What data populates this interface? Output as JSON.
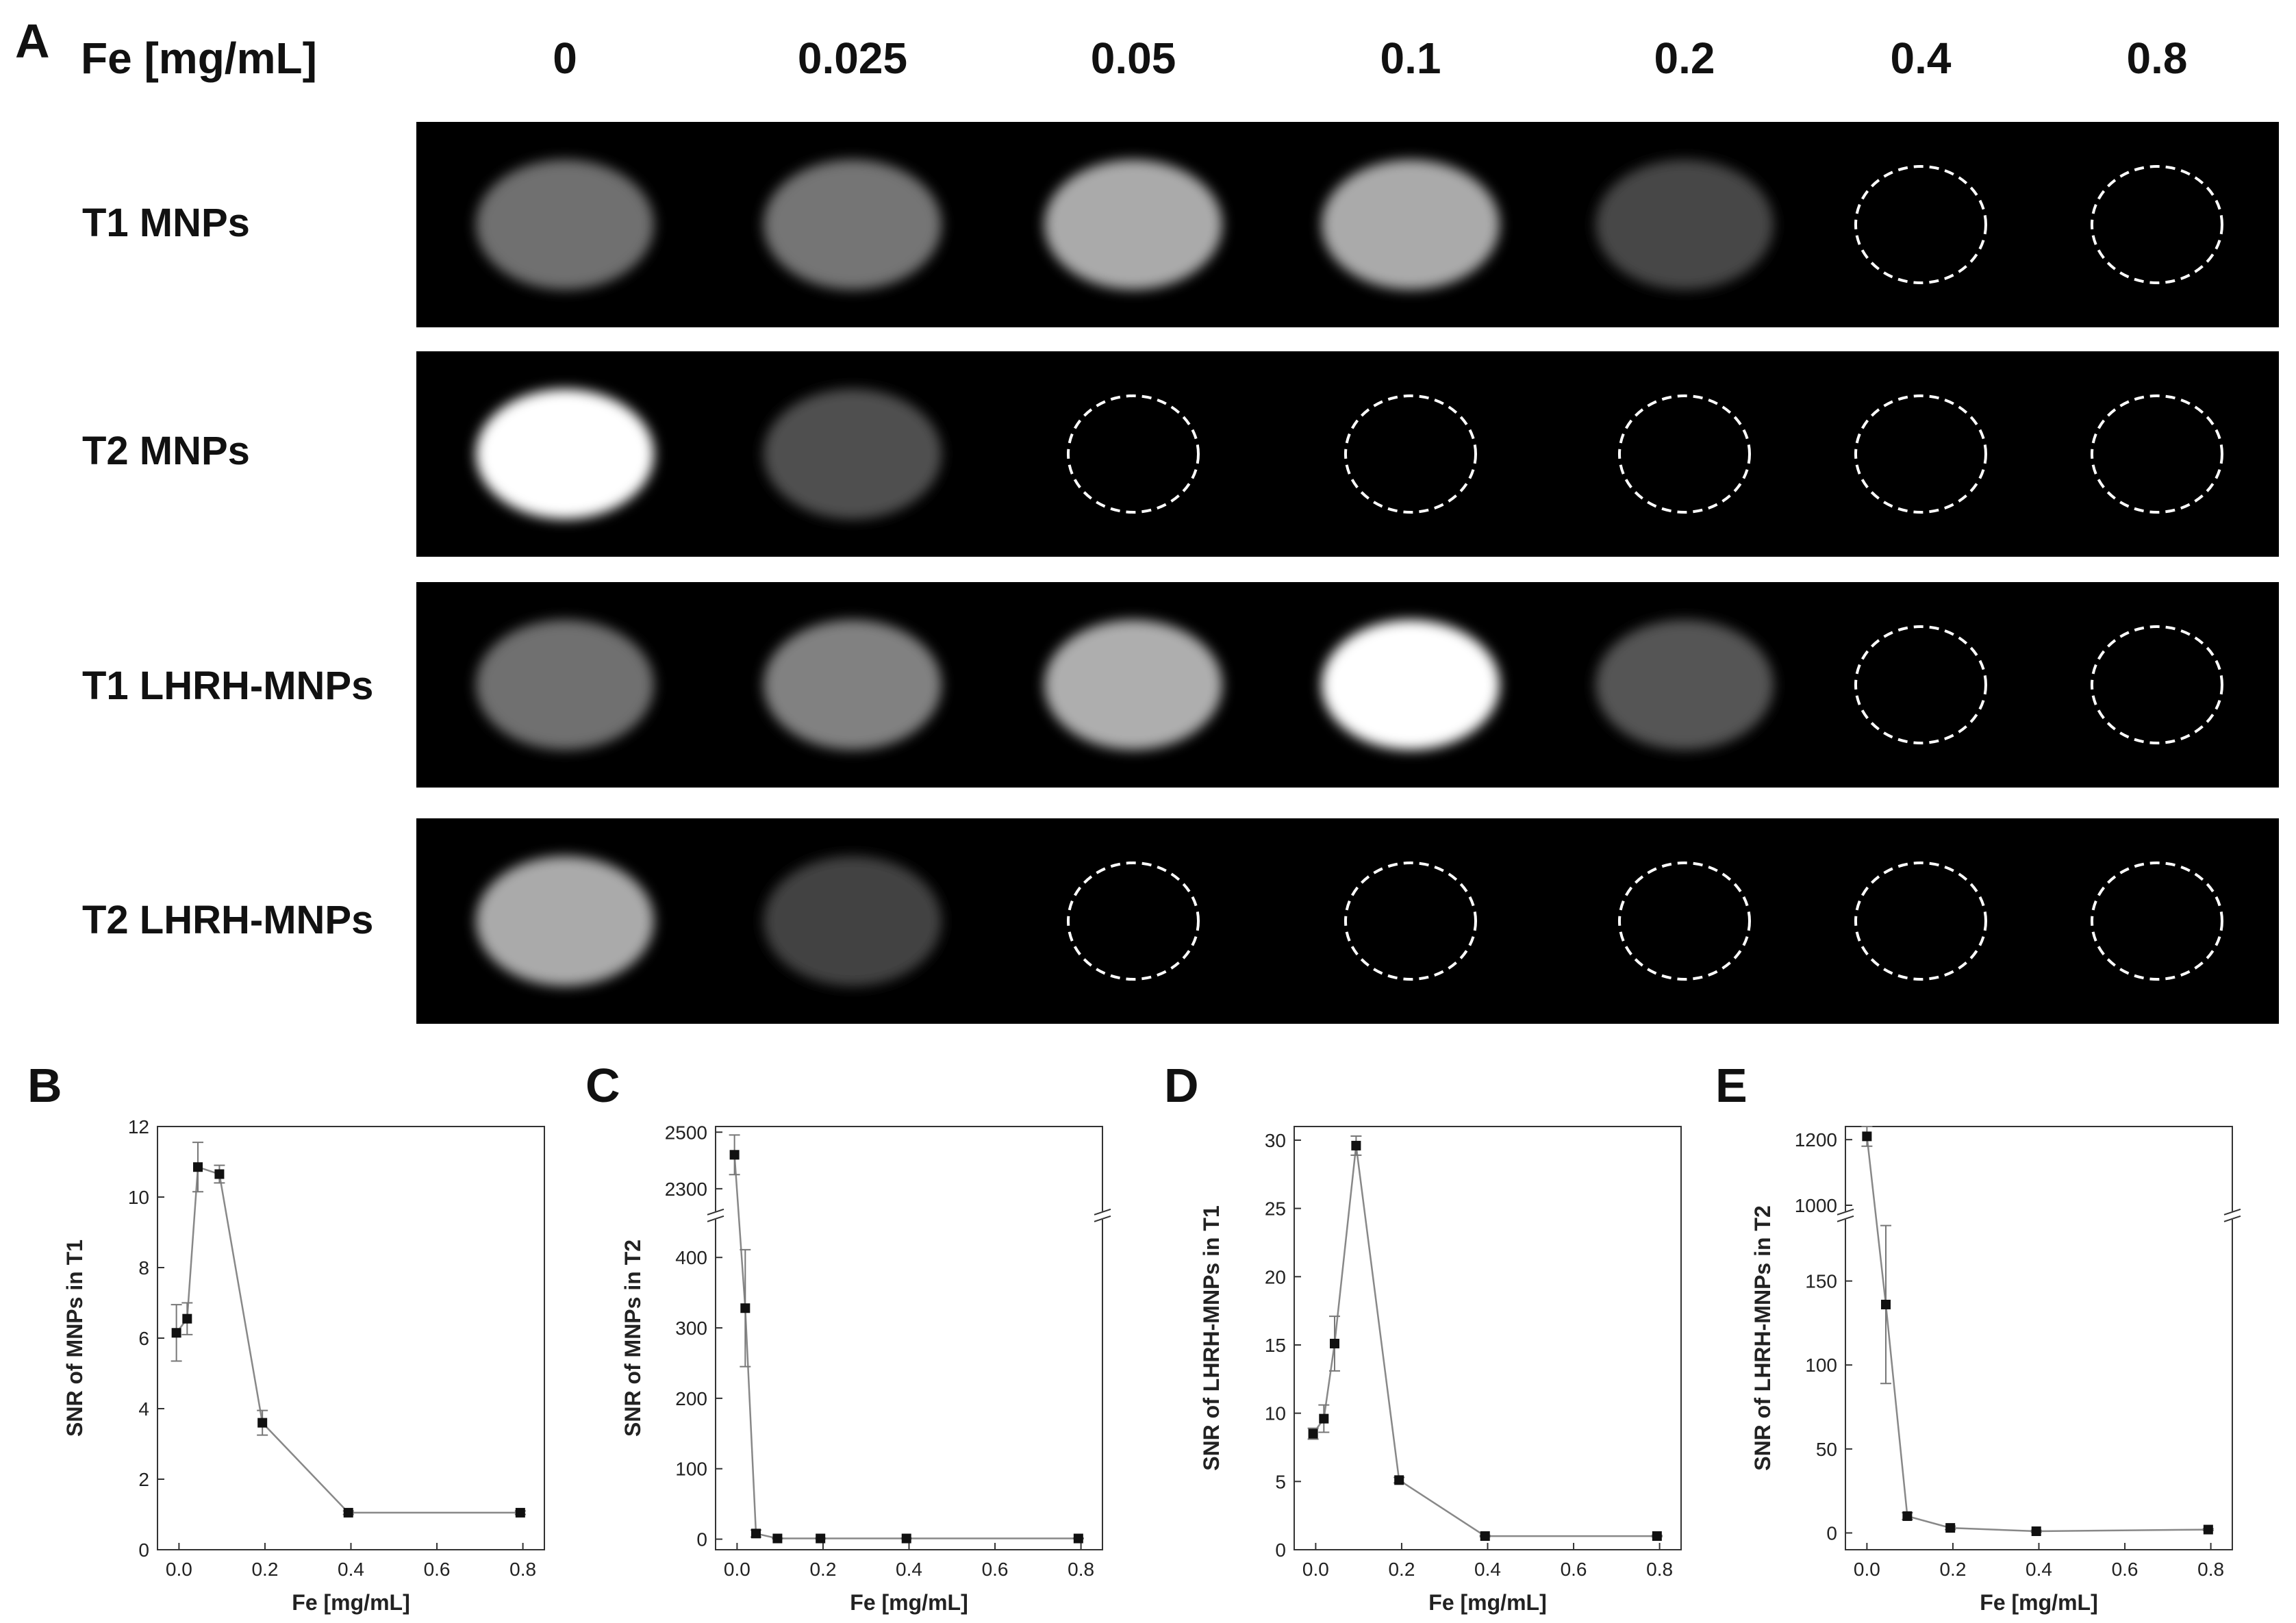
{
  "figure_a": {
    "panel_letter": "A",
    "fe_label": "Fe [mg/mL]",
    "concentrations": [
      "0",
      "0.025",
      "0.05",
      "0.1",
      "0.2",
      "0.4",
      "0.8"
    ],
    "rows": [
      {
        "label": "T1 MNPs",
        "samples": [
          {
            "brightness": 0.36,
            "type": "blob"
          },
          {
            "brightness": 0.38,
            "type": "blob"
          },
          {
            "brightness": 0.62,
            "type": "blob"
          },
          {
            "brightness": 0.62,
            "type": "blob"
          },
          {
            "brightness": 0.18,
            "type": "blob"
          },
          {
            "brightness": 0,
            "type": "dashed"
          },
          {
            "brightness": 0,
            "type": "dashed"
          }
        ]
      },
      {
        "label": "T2 MNPs",
        "samples": [
          {
            "brightness": 1.0,
            "type": "blob"
          },
          {
            "brightness": 0.22,
            "type": "blob"
          },
          {
            "brightness": 0,
            "type": "dashed"
          },
          {
            "brightness": 0,
            "type": "dashed"
          },
          {
            "brightness": 0,
            "type": "dashed"
          },
          {
            "brightness": 0,
            "type": "dashed"
          },
          {
            "brightness": 0,
            "type": "dashed"
          }
        ]
      },
      {
        "label": "T1 LHRH-MNPs",
        "samples": [
          {
            "brightness": 0.36,
            "type": "blob"
          },
          {
            "brightness": 0.44,
            "type": "blob"
          },
          {
            "brightness": 0.64,
            "type": "blob"
          },
          {
            "brightness": 1.0,
            "type": "blob"
          },
          {
            "brightness": 0.24,
            "type": "blob"
          },
          {
            "brightness": 0,
            "type": "dashed"
          },
          {
            "brightness": 0,
            "type": "dashed"
          }
        ]
      },
      {
        "label": "T2 LHRH-MNPs",
        "samples": [
          {
            "brightness": 0.62,
            "type": "blob"
          },
          {
            "brightness": 0.16,
            "type": "blob"
          },
          {
            "brightness": 0,
            "type": "dashed"
          },
          {
            "brightness": 0,
            "type": "dashed"
          },
          {
            "brightness": 0,
            "type": "dashed"
          },
          {
            "brightness": 0,
            "type": "dashed"
          },
          {
            "brightness": 0,
            "type": "dashed"
          }
        ]
      }
    ]
  },
  "chart_data": [
    {
      "panel": "B",
      "type": "line",
      "xlabel": "Fe [mg/mL]",
      "ylabel": "SNR of MNPs in T1",
      "x": [
        -0.006,
        0.019,
        0.044,
        0.094,
        0.194,
        0.394,
        0.794
      ],
      "y": [
        6.15,
        6.55,
        10.85,
        10.65,
        3.6,
        1.05,
        1.05
      ],
      "yerr": [
        0.8,
        0.45,
        0.7,
        0.25,
        0.35,
        0.05,
        0.05
      ],
      "xlim": [
        -0.05,
        0.85
      ],
      "ylim": [
        0,
        12
      ],
      "xticks": [
        "0.0",
        "0.2",
        "0.4",
        "0.6",
        "0.8"
      ],
      "xtick_values": [
        0,
        0.2,
        0.4,
        0.6,
        0.8
      ],
      "yticks": [
        "0",
        "2",
        "4",
        "6",
        "8",
        "10",
        "12"
      ],
      "ytick_values": [
        0,
        2,
        4,
        6,
        8,
        10,
        12
      ],
      "broken_axis": false
    },
    {
      "panel": "C",
      "type": "line",
      "xlabel": "Fe [mg/mL]",
      "ylabel": "SNR of MNPs in T2",
      "x": [
        -0.006,
        0.019,
        0.044,
        0.094,
        0.194,
        0.394,
        0.794
      ],
      "y": [
        2420,
        328,
        8,
        1,
        1,
        1,
        1
      ],
      "yerr": [
        70,
        83,
        5,
        0.5,
        0.5,
        0.5,
        0.5
      ],
      "xlim": [
        -0.05,
        0.85
      ],
      "broken_axis": true,
      "lower_ylim": [
        -15,
        450
      ],
      "upper_ylim": [
        2230,
        2520
      ],
      "xticks": [
        "0.0",
        "0.2",
        "0.4",
        "0.6",
        "0.8"
      ],
      "xtick_values": [
        0,
        0.2,
        0.4,
        0.6,
        0.8
      ],
      "lower_yticks": [
        "0",
        "100",
        "200",
        "300",
        "400"
      ],
      "lower_ytick_values": [
        0,
        100,
        200,
        300,
        400
      ],
      "upper_yticks": [
        "2300",
        "2500"
      ],
      "upper_ytick_values": [
        2300,
        2500
      ]
    },
    {
      "panel": "D",
      "type": "line",
      "xlabel": "Fe [mg/mL]",
      "ylabel": "SNR of LHRH-MNPs in T1",
      "x": [
        -0.006,
        0.019,
        0.044,
        0.094,
        0.194,
        0.394,
        0.794
      ],
      "y": [
        8.5,
        9.6,
        15.1,
        29.6,
        5.1,
        1.0,
        1.0
      ],
      "yerr": [
        0.4,
        1.0,
        2.0,
        0.7,
        0.2,
        0.05,
        0.05
      ],
      "xlim": [
        -0.05,
        0.85
      ],
      "ylim": [
        0,
        31
      ],
      "xticks": [
        "0.0",
        "0.2",
        "0.4",
        "0.6",
        "0.8"
      ],
      "xtick_values": [
        0,
        0.2,
        0.4,
        0.6,
        0.8
      ],
      "yticks": [
        "0",
        "5",
        "10",
        "15",
        "20",
        "25",
        "30"
      ],
      "ytick_values": [
        0,
        5,
        10,
        15,
        20,
        25,
        30
      ],
      "broken_axis": false
    },
    {
      "panel": "E",
      "type": "line",
      "xlabel": "Fe [mg/mL]",
      "ylabel": "SNR of LHRH-MNPs in T2",
      "x": [
        0.0,
        0.044,
        0.094,
        0.194,
        0.394,
        0.794
      ],
      "y": [
        1210,
        136,
        10,
        3,
        1,
        2
      ],
      "yerr": [
        30,
        47,
        2,
        1,
        0.5,
        0.5
      ],
      "xlim": [
        -0.05,
        0.85
      ],
      "broken_axis": true,
      "lower_ylim": [
        -10,
        185
      ],
      "upper_ylim": [
        990,
        1240
      ],
      "xticks": [
        "0.0",
        "0.2",
        "0.4",
        "0.6",
        "0.8"
      ],
      "xtick_values": [
        0,
        0.2,
        0.4,
        0.6,
        0.8
      ],
      "lower_yticks": [
        "0",
        "50",
        "100",
        "150"
      ],
      "lower_ytick_values": [
        0,
        50,
        100,
        150
      ],
      "upper_yticks": [
        "1000",
        "1200"
      ],
      "upper_ytick_values": [
        1000,
        1200
      ]
    }
  ]
}
